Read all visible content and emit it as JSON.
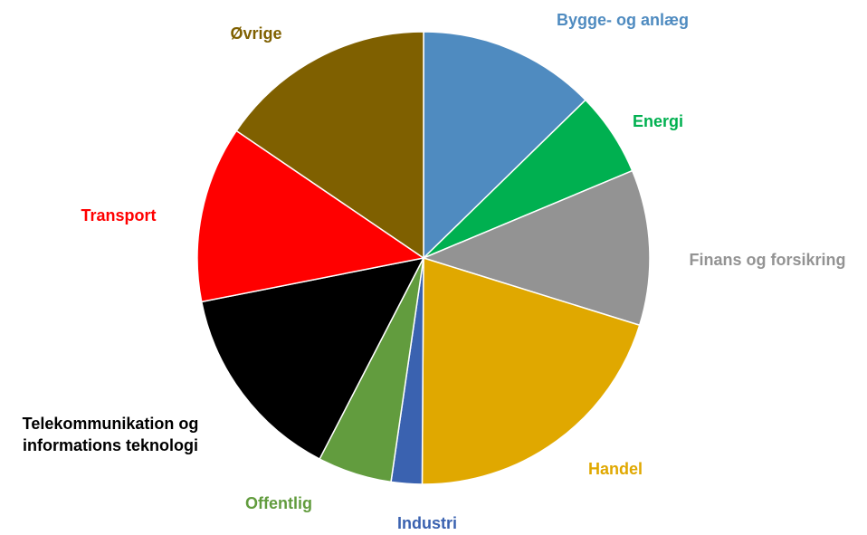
{
  "chart_data": {
    "type": "pie",
    "categories": [
      "Bygge- og anlæg",
      "Energi",
      "Finans og forsikring",
      "Handel",
      "Industri",
      "Offentlig",
      "Telekommunikation og informations teknologi",
      "Transport",
      "Øvrige"
    ],
    "values": [
      12.7,
      6.0,
      11.1,
      20.3,
      2.2,
      5.3,
      14.3,
      12.6,
      15.5
    ],
    "colors": [
      "#4f8bc0",
      "#00b050",
      "#939393",
      "#e0a800",
      "#3a62b0",
      "#629c3e",
      "#000000",
      "#ff0000",
      "#7f6000"
    ]
  }
}
